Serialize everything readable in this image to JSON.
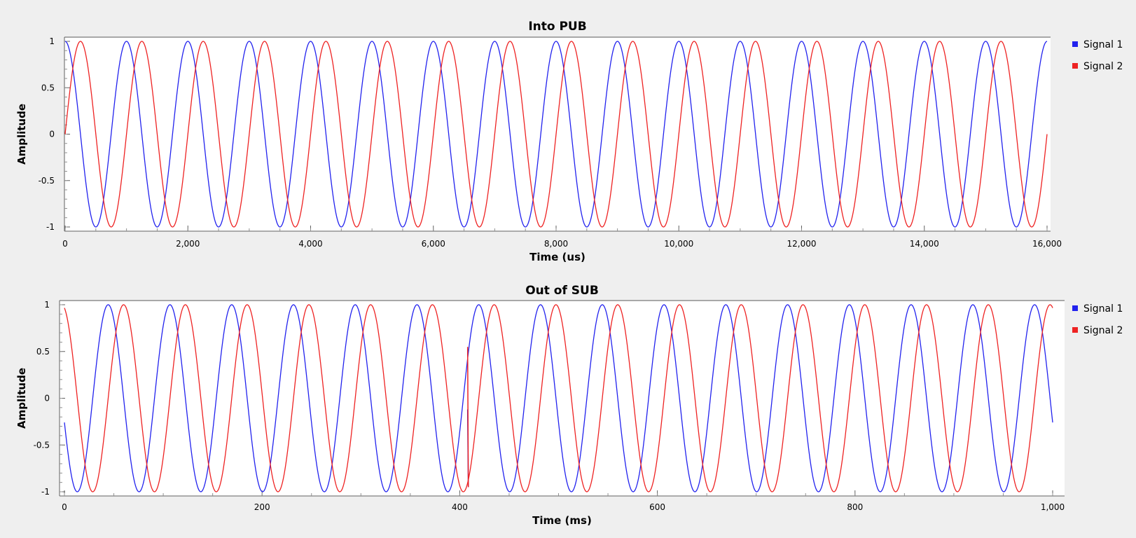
{
  "chart_data": [
    {
      "type": "line",
      "title": "Into PUB",
      "xlabel": "Time (us)",
      "ylabel": "Amplitude",
      "xlim": [
        0,
        16000
      ],
      "ylim": [
        -1,
        1
      ],
      "x_ticks": [
        "0",
        "2,000",
        "4,000",
        "6,000",
        "8,000",
        "10,000",
        "12,000",
        "14,000",
        "16,000"
      ],
      "y_ticks": [
        "1",
        "0.5",
        "0",
        "-0.5",
        "-1"
      ],
      "grid": false,
      "legend_position": "right",
      "series": [
        {
          "name": "Signal 1",
          "color": "#2222ee",
          "shape": "cosine",
          "period": 1000,
          "phase_deg": 0,
          "x_range": [
            0,
            16000
          ]
        },
        {
          "name": "Signal 2",
          "color": "#ee2222",
          "shape": "sine",
          "period": 1000,
          "phase_deg": 0,
          "x_range": [
            0,
            16000
          ]
        }
      ]
    },
    {
      "type": "line",
      "title": "Out of SUB",
      "xlabel": "Time (ms)",
      "ylabel": "Amplitude",
      "xlim": [
        0,
        1000
      ],
      "ylim": [
        -1,
        1
      ],
      "x_ticks": [
        "0",
        "200",
        "400",
        "600",
        "800",
        "1,000"
      ],
      "y_ticks": [
        "1",
        "0.5",
        "0",
        "-0.5",
        "-1"
      ],
      "grid": false,
      "legend_position": "right",
      "series": [
        {
          "name": "Signal 1",
          "color": "#2222ee",
          "shape": "cosine",
          "period": 62.5,
          "phase_deg": 105,
          "x_range": [
            0,
            1000
          ],
          "glitch": {
            "x": 408,
            "y_from": -0.12,
            "y_to": -0.95
          }
        },
        {
          "name": "Signal 2",
          "color": "#ee2222",
          "shape": "sine",
          "period": 62.5,
          "phase_deg": 105,
          "x_range": [
            0,
            1000
          ],
          "glitch": {
            "x": 408,
            "y_from": 0.55,
            "y_to": -0.95
          }
        }
      ]
    }
  ]
}
